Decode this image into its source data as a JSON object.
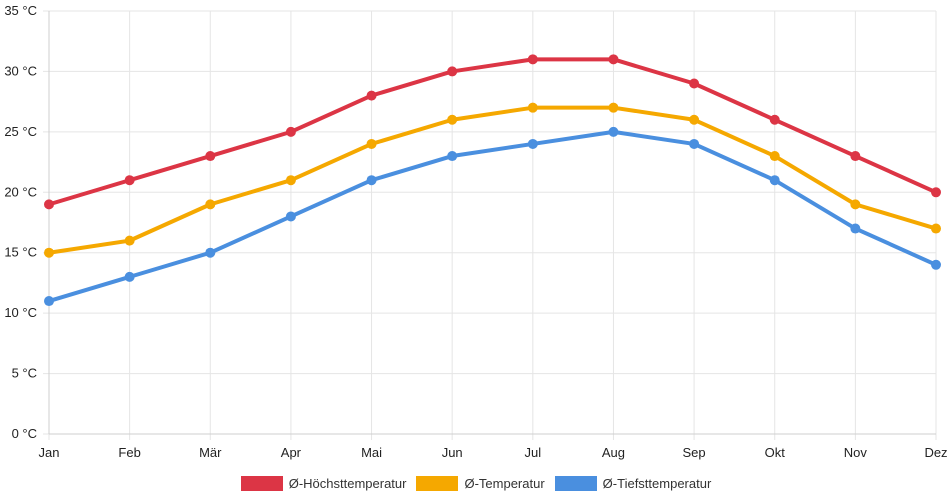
{
  "chart_data": {
    "type": "line",
    "categories": [
      "Jan",
      "Feb",
      "Mär",
      "Apr",
      "Mai",
      "Jun",
      "Jul",
      "Aug",
      "Sep",
      "Okt",
      "Nov",
      "Dez"
    ],
    "y_ticks": [
      "0 °C",
      "5 °C",
      "10 °C",
      "15 °C",
      "20 °C",
      "25 °C",
      "30 °C",
      "35 °C"
    ],
    "ylim": [
      0,
      35
    ],
    "grid": true,
    "legend_position": "bottom",
    "series": [
      {
        "name": "Ø-Höchsttemperatur",
        "color": "#dc3545",
        "values": [
          19,
          21,
          23,
          25,
          28,
          30,
          31,
          31,
          29,
          26,
          23,
          20
        ]
      },
      {
        "name": "Ø-Temperatur",
        "color": "#f5a800",
        "values": [
          15,
          16,
          19,
          21,
          24,
          26,
          27,
          27,
          26,
          23,
          19,
          17
        ]
      },
      {
        "name": "Ø-Tiefsttemperatur",
        "color": "#4a8fdf",
        "values": [
          11,
          13,
          15,
          18,
          21,
          23,
          24,
          25,
          24,
          21,
          17,
          14
        ]
      }
    ]
  }
}
